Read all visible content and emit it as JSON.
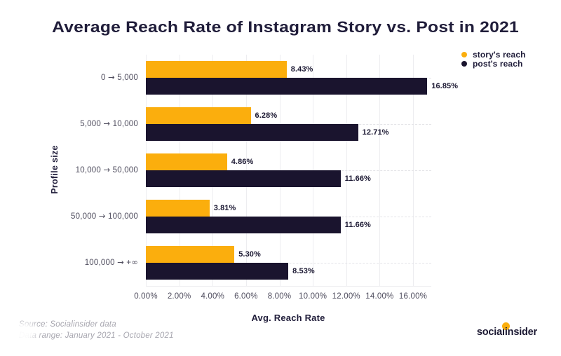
{
  "chart": {
    "title": "Average Reach Rate of Instagram Story vs. Post in 2021"
  },
  "chart_data": {
    "type": "bar",
    "orientation": "horizontal",
    "title": "Average Reach Rate of Instagram Story vs. Post in 2021",
    "xlabel": "Avg. Reach Rate",
    "ylabel": "Profile size",
    "categories": [
      "0 → 5,000",
      "5,000 → 10,000",
      "10,000 → 50,000",
      "50,000 → 100,000",
      "100,000 → +∞"
    ],
    "series": [
      {
        "name": "story's reach",
        "color": "#fbae0d",
        "values": [
          8.43,
          6.28,
          4.86,
          3.81,
          5.3
        ],
        "labels": [
          "8.43%",
          "6.28%",
          "4.86%",
          "3.81%",
          "5.30%"
        ]
      },
      {
        "name": "post's reach",
        "color": "#1a142e",
        "values": [
          16.85,
          12.71,
          11.66,
          11.66,
          8.53
        ],
        "labels": [
          "16.85%",
          "12.71%",
          "11.66%",
          "11.66%",
          "8.53%"
        ]
      }
    ],
    "x_ticks": [
      "0.00%",
      "2.00%",
      "4.00%",
      "6.00%",
      "8.00%",
      "10.00%",
      "12.00%",
      "14.00%",
      "16.00%"
    ],
    "x_tick_values": [
      0,
      2,
      4,
      6,
      8,
      10,
      12,
      14,
      16
    ],
    "xlim": [
      0,
      17.1
    ],
    "grid": true,
    "legend_position": "top-right"
  },
  "footer": {
    "source_line1": "Source: Socialinsider data",
    "source_line2": "Data range: January 2021 - October 2021",
    "logo_prefix": "social",
    "logo_i": "i",
    "logo_suffix": "nsider"
  },
  "colors": {
    "story": "#fbae0d",
    "post": "#1a142e",
    "title_text": "#201d3a",
    "axis_text": "#4f4d5e",
    "grid_line": "#ededf0",
    "dashed_line": "#e3e3e7",
    "source_text": "#a7a6af",
    "background": "#ffffff"
  }
}
